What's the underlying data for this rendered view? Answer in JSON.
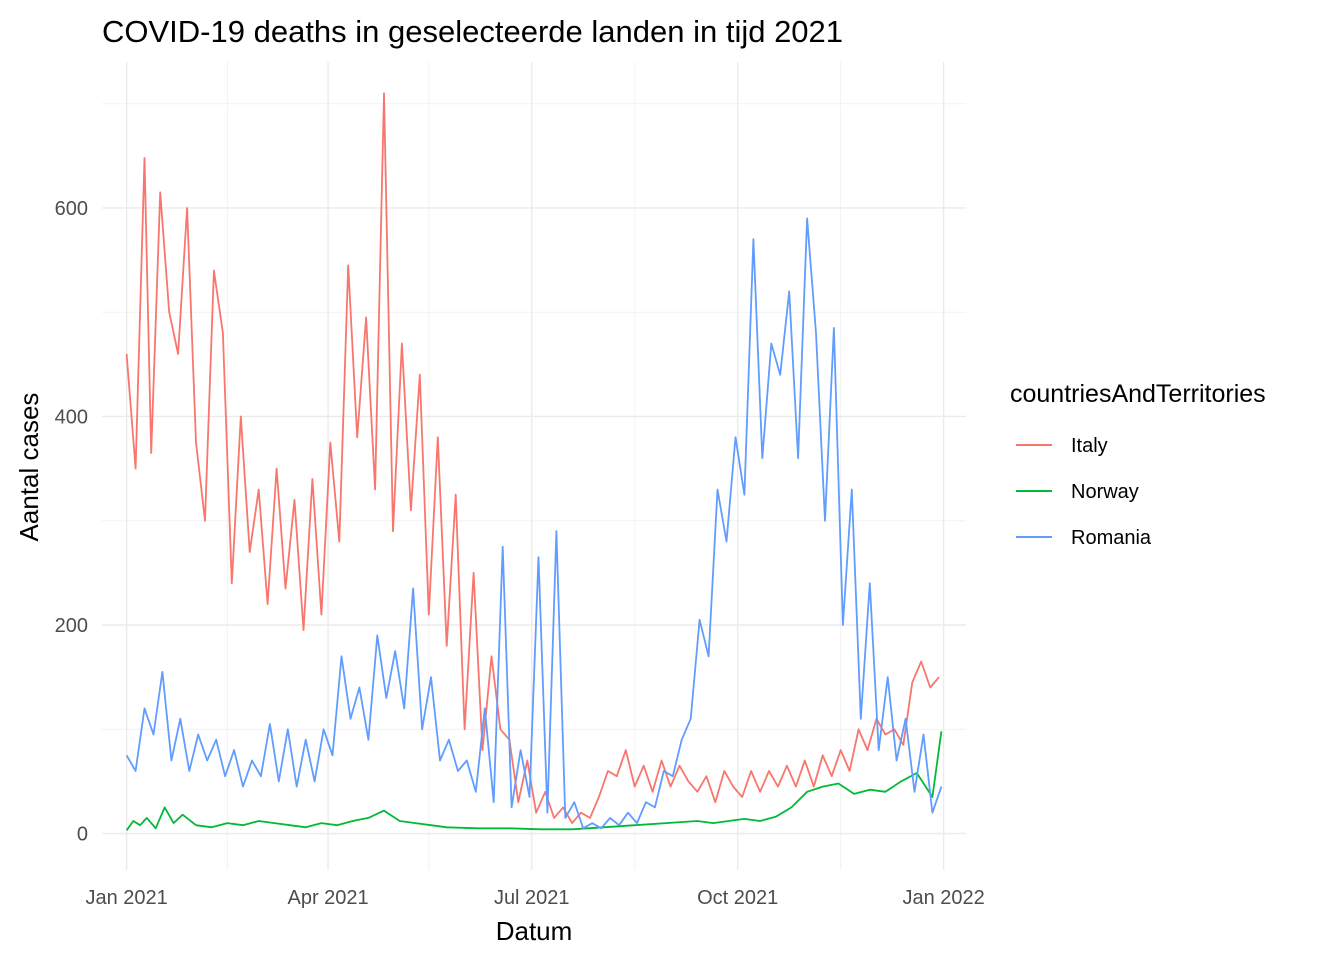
{
  "chart_data": {
    "type": "line",
    "title": "COVID-19 deaths in geselecteerde landen in tijd 2021",
    "xlabel": "Datum",
    "ylabel": "Aantal cases",
    "x_ticks": [
      "Jan 2021",
      "Apr 2021",
      "Jul 2021",
      "Oct 2021",
      "Jan 2022"
    ],
    "y_ticks": [
      0,
      200,
      400,
      600
    ],
    "xlim": [
      "2020-12-21",
      "2022-01-11"
    ],
    "ylim": [
      -35,
      740
    ],
    "grid": true,
    "legend": {
      "title": "countriesAndTerritories",
      "position": "right"
    },
    "series": [
      {
        "name": "Italy",
        "color": "#F8766D",
        "dates": [
          "2021-01-01",
          "2021-01-05",
          "2021-01-09",
          "2021-01-12",
          "2021-01-16",
          "2021-01-20",
          "2021-01-24",
          "2021-01-28",
          "2021-02-01",
          "2021-02-05",
          "2021-02-09",
          "2021-02-13",
          "2021-02-17",
          "2021-02-21",
          "2021-02-25",
          "2021-03-01",
          "2021-03-05",
          "2021-03-09",
          "2021-03-13",
          "2021-03-17",
          "2021-03-21",
          "2021-03-25",
          "2021-03-29",
          "2021-04-02",
          "2021-04-06",
          "2021-04-10",
          "2021-04-14",
          "2021-04-18",
          "2021-04-22",
          "2021-04-26",
          "2021-04-30",
          "2021-05-04",
          "2021-05-08",
          "2021-05-12",
          "2021-05-16",
          "2021-05-20",
          "2021-05-24",
          "2021-05-28",
          "2021-06-01",
          "2021-06-05",
          "2021-06-09",
          "2021-06-13",
          "2021-06-17",
          "2021-06-21",
          "2021-06-25",
          "2021-06-29",
          "2021-07-03",
          "2021-07-07",
          "2021-07-11",
          "2021-07-15",
          "2021-07-19",
          "2021-07-23",
          "2021-07-27",
          "2021-07-31",
          "2021-08-04",
          "2021-08-08",
          "2021-08-12",
          "2021-08-16",
          "2021-08-20",
          "2021-08-24",
          "2021-08-28",
          "2021-09-01",
          "2021-09-05",
          "2021-09-09",
          "2021-09-13",
          "2021-09-17",
          "2021-09-21",
          "2021-09-25",
          "2021-09-29",
          "2021-10-03",
          "2021-10-07",
          "2021-10-11",
          "2021-10-15",
          "2021-10-19",
          "2021-10-23",
          "2021-10-27",
          "2021-10-31",
          "2021-11-04",
          "2021-11-08",
          "2021-11-12",
          "2021-11-16",
          "2021-11-20",
          "2021-11-24",
          "2021-11-28",
          "2021-12-02",
          "2021-12-06",
          "2021-12-10",
          "2021-12-14",
          "2021-12-18",
          "2021-12-22",
          "2021-12-26",
          "2021-12-30"
        ],
        "values": [
          460,
          350,
          648,
          365,
          615,
          500,
          460,
          600,
          375,
          300,
          540,
          480,
          240,
          400,
          270,
          330,
          220,
          350,
          235,
          320,
          195,
          340,
          210,
          375,
          280,
          545,
          380,
          495,
          330,
          710,
          290,
          470,
          310,
          440,
          210,
          380,
          180,
          325,
          100,
          250,
          80,
          170,
          100,
          90,
          30,
          70,
          20,
          40,
          15,
          25,
          10,
          20,
          15,
          35,
          60,
          55,
          80,
          45,
          65,
          40,
          70,
          45,
          65,
          50,
          40,
          55,
          30,
          60,
          45,
          35,
          60,
          40,
          60,
          45,
          65,
          45,
          70,
          45,
          75,
          55,
          80,
          60,
          100,
          80,
          110,
          95,
          100,
          85,
          145,
          165,
          140,
          150
        ]
      },
      {
        "name": "Norway",
        "color": "#00BA38",
        "dates": [
          "2021-01-01",
          "2021-01-04",
          "2021-01-07",
          "2021-01-10",
          "2021-01-14",
          "2021-01-18",
          "2021-01-22",
          "2021-01-26",
          "2021-02-01",
          "2021-02-08",
          "2021-02-15",
          "2021-02-22",
          "2021-03-01",
          "2021-03-08",
          "2021-03-15",
          "2021-03-22",
          "2021-03-29",
          "2021-04-05",
          "2021-04-12",
          "2021-04-19",
          "2021-04-26",
          "2021-05-03",
          "2021-05-10",
          "2021-05-17",
          "2021-05-24",
          "2021-06-07",
          "2021-06-21",
          "2021-07-05",
          "2021-07-19",
          "2021-08-02",
          "2021-08-16",
          "2021-08-30",
          "2021-09-13",
          "2021-09-20",
          "2021-09-27",
          "2021-10-04",
          "2021-10-11",
          "2021-10-18",
          "2021-10-25",
          "2021-11-01",
          "2021-11-08",
          "2021-11-15",
          "2021-11-22",
          "2021-11-29",
          "2021-12-06",
          "2021-12-13",
          "2021-12-20",
          "2021-12-27",
          "2021-12-31"
        ],
        "values": [
          3,
          12,
          8,
          15,
          5,
          25,
          10,
          18,
          8,
          6,
          10,
          8,
          12,
          10,
          8,
          6,
          10,
          8,
          12,
          15,
          22,
          12,
          10,
          8,
          6,
          5,
          5,
          4,
          4,
          6,
          8,
          10,
          12,
          10,
          12,
          14,
          12,
          16,
          25,
          40,
          45,
          48,
          38,
          42,
          40,
          50,
          58,
          35,
          98
        ]
      },
      {
        "name": "Romania",
        "color": "#619CFF",
        "dates": [
          "2021-01-01",
          "2021-01-05",
          "2021-01-09",
          "2021-01-13",
          "2021-01-17",
          "2021-01-21",
          "2021-01-25",
          "2021-01-29",
          "2021-02-02",
          "2021-02-06",
          "2021-02-10",
          "2021-02-14",
          "2021-02-18",
          "2021-02-22",
          "2021-02-26",
          "2021-03-02",
          "2021-03-06",
          "2021-03-10",
          "2021-03-14",
          "2021-03-18",
          "2021-03-22",
          "2021-03-26",
          "2021-03-30",
          "2021-04-03",
          "2021-04-07",
          "2021-04-11",
          "2021-04-15",
          "2021-04-19",
          "2021-04-23",
          "2021-04-27",
          "2021-05-01",
          "2021-05-05",
          "2021-05-09",
          "2021-05-13",
          "2021-05-17",
          "2021-05-21",
          "2021-05-25",
          "2021-05-29",
          "2021-06-02",
          "2021-06-06",
          "2021-06-10",
          "2021-06-14",
          "2021-06-18",
          "2021-06-22",
          "2021-06-26",
          "2021-06-30",
          "2021-07-04",
          "2021-07-08",
          "2021-07-12",
          "2021-07-16",
          "2021-07-20",
          "2021-07-24",
          "2021-07-28",
          "2021-08-01",
          "2021-08-05",
          "2021-08-09",
          "2021-08-13",
          "2021-08-17",
          "2021-08-21",
          "2021-08-25",
          "2021-08-29",
          "2021-09-02",
          "2021-09-06",
          "2021-09-10",
          "2021-09-14",
          "2021-09-18",
          "2021-09-22",
          "2021-09-26",
          "2021-09-30",
          "2021-10-04",
          "2021-10-08",
          "2021-10-12",
          "2021-10-16",
          "2021-10-20",
          "2021-10-24",
          "2021-10-28",
          "2021-11-01",
          "2021-11-05",
          "2021-11-09",
          "2021-11-13",
          "2021-11-17",
          "2021-11-21",
          "2021-11-25",
          "2021-11-29",
          "2021-12-03",
          "2021-12-07",
          "2021-12-11",
          "2021-12-15",
          "2021-12-19",
          "2021-12-23",
          "2021-12-27",
          "2021-12-31"
        ],
        "values": [
          75,
          60,
          120,
          95,
          155,
          70,
          110,
          60,
          95,
          70,
          90,
          55,
          80,
          45,
          70,
          55,
          105,
          50,
          100,
          45,
          90,
          50,
          100,
          75,
          170,
          110,
          140,
          90,
          190,
          130,
          175,
          120,
          235,
          100,
          150,
          70,
          90,
          60,
          70,
          40,
          120,
          30,
          275,
          25,
          80,
          35,
          265,
          20,
          290,
          15,
          30,
          5,
          10,
          5,
          15,
          8,
          20,
          10,
          30,
          25,
          60,
          55,
          90,
          110,
          205,
          170,
          330,
          280,
          380,
          325,
          570,
          360,
          470,
          440,
          520,
          360,
          590,
          480,
          300,
          485,
          200,
          330,
          110,
          240,
          80,
          150,
          70,
          110,
          40,
          95,
          20,
          45
        ]
      }
    ]
  }
}
